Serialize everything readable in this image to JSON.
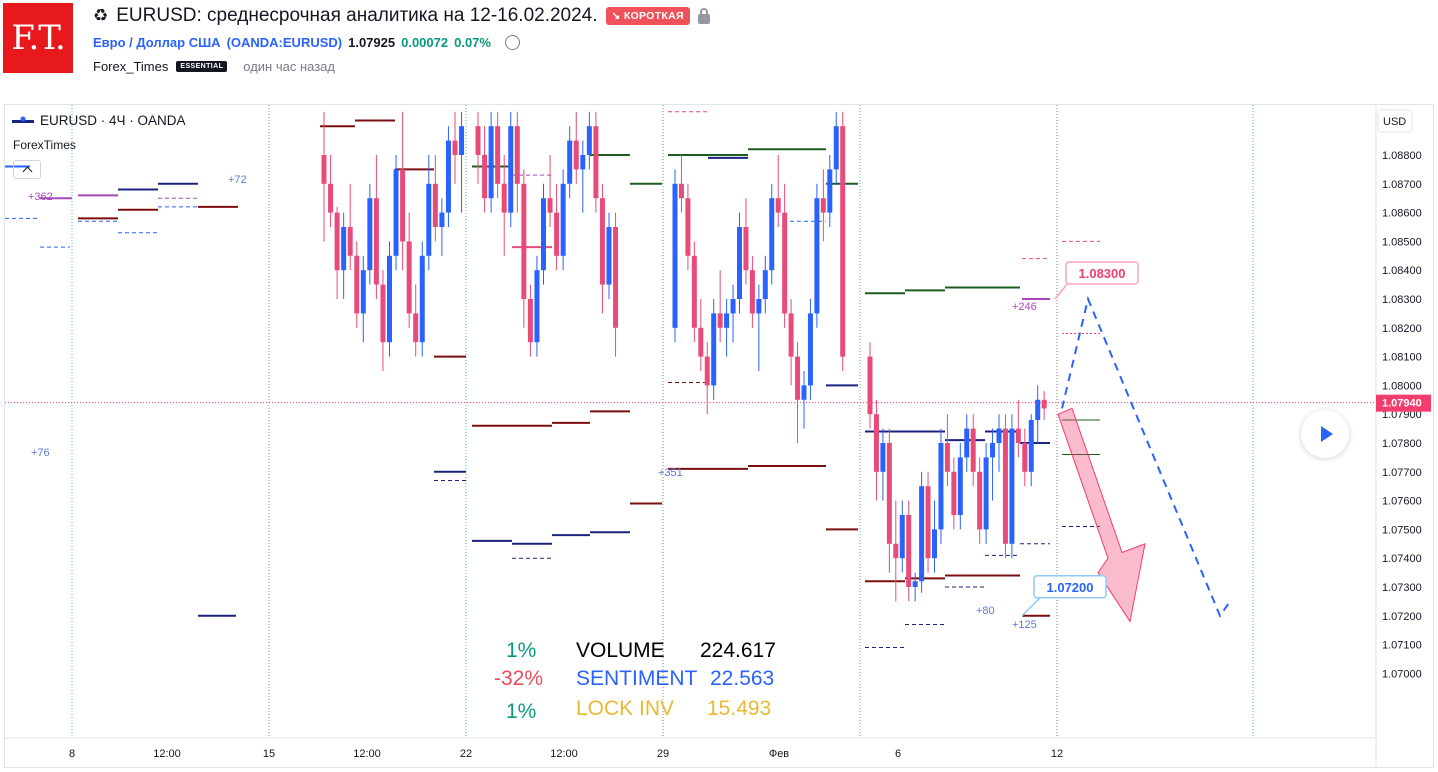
{
  "header": {
    "logo_text": "F.T.",
    "recycle_icon": "♻",
    "title": "EURUSD: среднесрочная аналитика на 12-16.02.2024.",
    "badge": "↘ КОРОТКАЯ",
    "symbol_name": "Евро / Доллар США",
    "symbol_code": "(OANDA:EURUSD)",
    "price": "1.07925",
    "change": "0.00072",
    "change_pct": "0.07%",
    "author": "Forex_Times",
    "author_badge": "ESSENTIAL",
    "time_ago": "один час назад"
  },
  "legend": {
    "symbol": "EURUSD · 4Ч · OANDA",
    "indicator": "ForexTimes"
  },
  "stats": {
    "row1": {
      "pct": "1%",
      "label": "VOLUME",
      "value": "224.617"
    },
    "row2": {
      "pct": "-32%",
      "label": "SENTIMENT",
      "value": "22.563"
    },
    "row3": {
      "pct": "1%",
      "label": "LOCK INV",
      "value": "15.493"
    }
  },
  "colors": {
    "up": "#2962ff",
    "down": "#e84b7a",
    "logo": "#e8191c",
    "badge": "#f0525c",
    "price_tag": "#f23d6d"
  },
  "chart_data": {
    "type": "candlestick",
    "axis_currency": "USD",
    "ylim": [
      1.0695,
      1.0895
    ],
    "yticks": [
      "1.08800",
      "1.08700",
      "1.08600",
      "1.08500",
      "1.08400",
      "1.08300",
      "1.08200",
      "1.08100",
      "1.08000",
      "1.07900",
      "1.07800",
      "1.07700",
      "1.07600",
      "1.07500",
      "1.07400",
      "1.07300",
      "1.07200",
      "1.07100",
      "1.07000"
    ],
    "xticks": [
      "8",
      "12:00",
      "15",
      "12:00",
      "22",
      "12:00",
      "29",
      "Фев",
      "6",
      "12"
    ],
    "current_price": "1.07940",
    "target_high": "1.08300",
    "target_low": "1.07200",
    "annotations": [
      "+362",
      "+72",
      "+76",
      "+351",
      "+246",
      "+80",
      "+125"
    ],
    "segments": [
      {
        "week": "15",
        "candles": [
          [
            1.088,
            1.0895,
            1.085,
            1.087
          ],
          [
            1.087,
            1.088,
            1.0855,
            1.086
          ],
          [
            1.086,
            1.0862,
            1.083,
            1.084
          ],
          [
            1.084,
            1.086,
            1.083,
            1.0855
          ],
          [
            1.0855,
            1.087,
            1.084,
            1.0845
          ],
          [
            1.0845,
            1.085,
            1.082,
            1.0825
          ],
          [
            1.0825,
            1.0845,
            1.0815,
            1.084
          ],
          [
            1.084,
            1.087,
            1.0835,
            1.0865
          ],
          [
            1.0865,
            1.088,
            1.083,
            1.0835
          ],
          [
            1.0835,
            1.084,
            1.0805,
            1.0815
          ],
          [
            1.0815,
            1.085,
            1.081,
            1.0845
          ],
          [
            1.0845,
            1.088,
            1.084,
            1.0875
          ],
          [
            1.0875,
            1.0895,
            1.084,
            1.085
          ],
          [
            1.085,
            1.086,
            1.082,
            1.0825
          ],
          [
            1.0825,
            1.0835,
            1.081,
            1.0815
          ],
          [
            1.0815,
            1.085,
            1.081,
            1.0845
          ],
          [
            1.0845,
            1.088,
            1.084,
            1.087
          ],
          [
            1.087,
            1.088,
            1.085,
            1.0855
          ],
          [
            1.0855,
            1.0865,
            1.0845,
            1.086
          ],
          [
            1.086,
            1.089,
            1.0855,
            1.0885
          ],
          [
            1.0885,
            1.0895,
            1.087,
            1.088
          ],
          [
            1.088,
            1.0895,
            1.086,
            1.089
          ]
        ]
      },
      {
        "week": "22",
        "candles": [
          [
            1.089,
            1.0895,
            1.087,
            1.088
          ],
          [
            1.088,
            1.089,
            1.086,
            1.0865
          ],
          [
            1.0865,
            1.0895,
            1.086,
            1.089
          ],
          [
            1.089,
            1.0895,
            1.0865,
            1.087
          ],
          [
            1.087,
            1.088,
            1.0845,
            1.086
          ],
          [
            1.086,
            1.0895,
            1.0855,
            1.089
          ],
          [
            1.089,
            1.0895,
            1.086,
            1.087
          ],
          [
            1.087,
            1.0875,
            1.082,
            1.083
          ],
          [
            1.083,
            1.0835,
            1.081,
            1.0815
          ],
          [
            1.0815,
            1.0845,
            1.081,
            1.084
          ],
          [
            1.084,
            1.087,
            1.0835,
            1.0865
          ],
          [
            1.0865,
            1.088,
            1.0855,
            1.086
          ],
          [
            1.086,
            1.087,
            1.084,
            1.0845
          ],
          [
            1.0845,
            1.0875,
            1.084,
            1.087
          ],
          [
            1.087,
            1.089,
            1.0865,
            1.0885
          ],
          [
            1.0885,
            1.0895,
            1.087,
            1.0875
          ],
          [
            1.0875,
            1.0885,
            1.086,
            1.088
          ],
          [
            1.088,
            1.0895,
            1.0875,
            1.089
          ],
          [
            1.089,
            1.0895,
            1.086,
            1.0865
          ],
          [
            1.0865,
            1.087,
            1.0825,
            1.0835
          ],
          [
            1.0835,
            1.086,
            1.083,
            1.0855
          ],
          [
            1.0855,
            1.086,
            1.081,
            1.082
          ]
        ]
      },
      {
        "week": "29",
        "candles": [
          [
            1.082,
            1.0875,
            1.0815,
            1.087
          ],
          [
            1.087,
            1.088,
            1.086,
            1.0865
          ],
          [
            1.0865,
            1.087,
            1.084,
            1.0845
          ],
          [
            1.0845,
            1.085,
            1.0815,
            1.082
          ],
          [
            1.082,
            1.083,
            1.0805,
            1.081
          ],
          [
            1.081,
            1.0815,
            1.079,
            1.08
          ],
          [
            1.08,
            1.083,
            1.0795,
            1.0825
          ],
          [
            1.0825,
            1.084,
            1.0815,
            1.082
          ],
          [
            1.082,
            1.083,
            1.081,
            1.0825
          ],
          [
            1.0825,
            1.0835,
            1.0815,
            1.083
          ],
          [
            1.083,
            1.086,
            1.0825,
            1.0855
          ],
          [
            1.0855,
            1.0865,
            1.0835,
            1.084
          ],
          [
            1.084,
            1.0845,
            1.082,
            1.0825
          ],
          [
            1.0825,
            1.0835,
            1.0805,
            1.083
          ],
          [
            1.083,
            1.0845,
            1.0825,
            1.084
          ],
          [
            1.084,
            1.087,
            1.0835,
            1.0865
          ],
          [
            1.0865,
            1.088,
            1.0855,
            1.086
          ],
          [
            1.086,
            1.087,
            1.082,
            1.0825
          ],
          [
            1.0825,
            1.083,
            1.08,
            1.081
          ],
          [
            1.081,
            1.0815,
            1.078,
            1.0795
          ],
          [
            1.0795,
            1.0805,
            1.0785,
            1.08
          ],
          [
            1.08,
            1.083,
            1.0795,
            1.0825
          ],
          [
            1.0825,
            1.087,
            1.082,
            1.0865
          ],
          [
            1.0865,
            1.0875,
            1.085,
            1.086
          ],
          [
            1.086,
            1.088,
            1.0855,
            1.0875
          ],
          [
            1.0875,
            1.0895,
            1.087,
            1.089
          ],
          [
            1.089,
            1.0895,
            1.0805,
            1.081
          ]
        ]
      },
      {
        "week": "6",
        "candles": [
          [
            1.081,
            1.0815,
            1.0785,
            1.079
          ],
          [
            1.079,
            1.0795,
            1.076,
            1.077
          ],
          [
            1.077,
            1.0785,
            1.076,
            1.078
          ],
          [
            1.078,
            1.0785,
            1.0735,
            1.0745
          ],
          [
            1.0745,
            1.076,
            1.0725,
            1.074
          ],
          [
            1.074,
            1.076,
            1.0735,
            1.0755
          ],
          [
            1.0755,
            1.076,
            1.0725,
            1.073
          ],
          [
            1.073,
            1.0735,
            1.0725,
            1.0732
          ],
          [
            1.0732,
            1.077,
            1.0728,
            1.0765
          ],
          [
            1.0765,
            1.077,
            1.0735,
            1.074
          ],
          [
            1.074,
            1.076,
            1.0735,
            1.075
          ],
          [
            1.075,
            1.0785,
            1.0745,
            1.078
          ],
          [
            1.078,
            1.079,
            1.0765,
            1.077
          ],
          [
            1.077,
            1.0775,
            1.075,
            1.0755
          ],
          [
            1.0755,
            1.078,
            1.075,
            1.0775
          ],
          [
            1.0775,
            1.079,
            1.077,
            1.0785
          ],
          [
            1.0785,
            1.079,
            1.0765,
            1.077
          ],
          [
            1.077,
            1.0775,
            1.0745,
            1.075
          ],
          [
            1.075,
            1.078,
            1.0745,
            1.0775
          ],
          [
            1.0775,
            1.0785,
            1.076,
            1.078
          ],
          [
            1.078,
            1.079,
            1.077,
            1.0785
          ],
          [
            1.0785,
            1.079,
            1.074,
            1.0745
          ],
          [
            1.0745,
            1.079,
            1.074,
            1.0785
          ],
          [
            1.0785,
            1.0795,
            1.0775,
            1.078
          ],
          [
            1.078,
            1.0785,
            1.0765,
            1.077
          ],
          [
            1.077,
            1.079,
            1.0765,
            1.0788
          ],
          [
            1.0788,
            1.08,
            1.078,
            1.0795
          ],
          [
            1.0795,
            1.0798,
            1.0788,
            1.0792
          ]
        ]
      }
    ]
  }
}
